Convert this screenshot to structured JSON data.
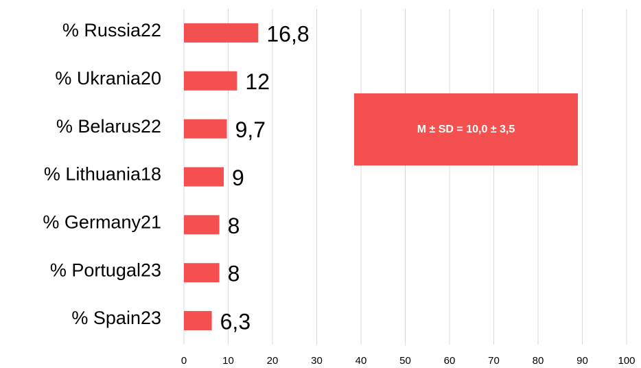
{
  "chart_data": {
    "type": "bar",
    "orientation": "horizontal",
    "categories": [
      "% Russia22",
      "% Ukrania20",
      "% Belarus22",
      "% Lithuania18",
      "% Germany21",
      "% Portugal23",
      "% Spain23"
    ],
    "values": [
      16.8,
      12,
      9.7,
      9,
      8,
      8,
      6.3
    ],
    "value_labels": [
      "16,8",
      "12",
      "9,7",
      "9",
      "8",
      "8",
      "6,3"
    ],
    "color": "#f55050",
    "xlim": [
      0,
      100
    ],
    "xticks": [
      0,
      10,
      20,
      30,
      40,
      50,
      60,
      70,
      80,
      90,
      100
    ],
    "grid": true,
    "annotation": "M ± SD = 10,0 ± 3,5"
  }
}
